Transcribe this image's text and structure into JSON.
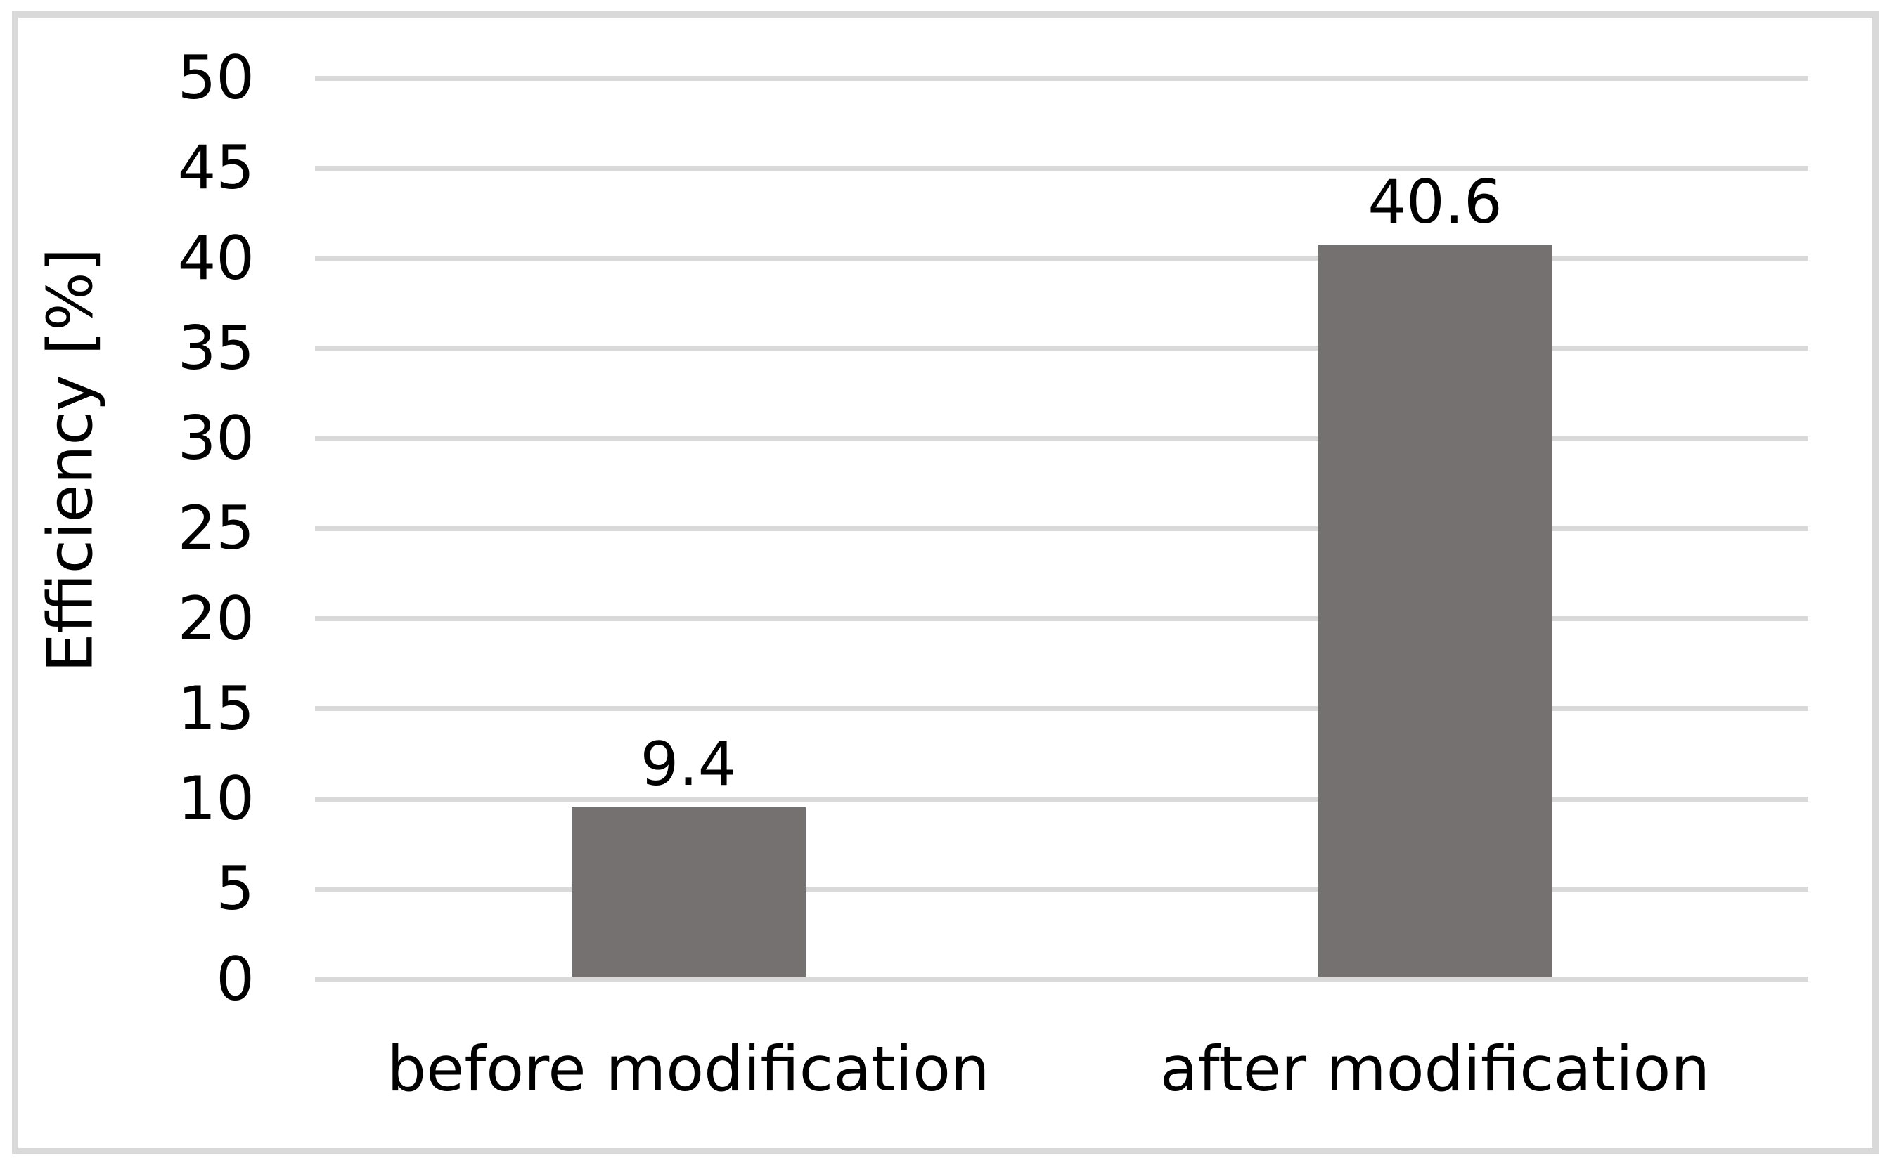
{
  "chart_data": {
    "type": "bar",
    "title": "",
    "xlabel": "",
    "ylabel": "Efficiency [%]",
    "categories": [
      "before modification",
      "after modification"
    ],
    "values": [
      9.4,
      40.6
    ],
    "data_labels": [
      "9.4",
      "40.6"
    ],
    "ylim": [
      0,
      50
    ],
    "yticks": [
      0,
      5,
      10,
      15,
      20,
      25,
      30,
      35,
      40,
      45,
      50
    ],
    "grid": "horizontal",
    "legend": "none",
    "colors": {
      "bar": "#767171",
      "gridline": "#d9d9d9",
      "frame_border": "#d9d9d9",
      "text": "#000000",
      "background": "#ffffff"
    }
  }
}
